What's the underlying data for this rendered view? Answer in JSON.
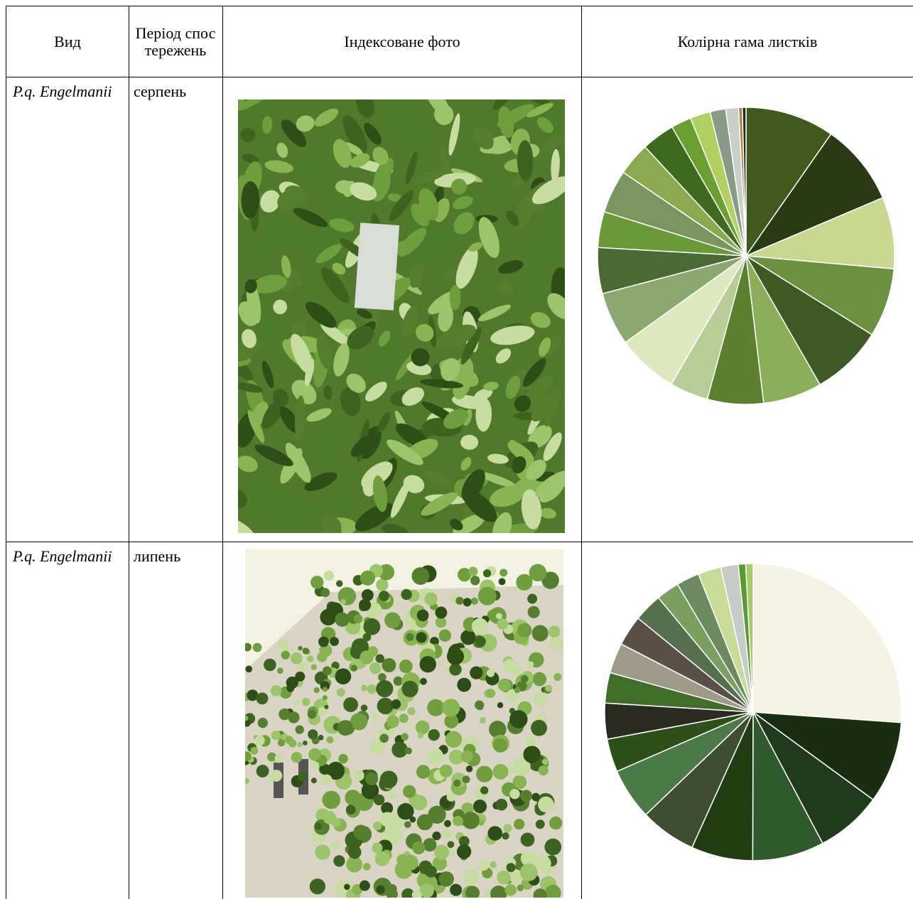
{
  "header": {
    "species": "Вид",
    "period": "Період спостережень",
    "photo": "Індексоване фото",
    "palette": "Колірна гама листків"
  },
  "rows": [
    {
      "species": "P.q. Engelmanii",
      "period": "серпень",
      "pie": {
        "type": "pie",
        "values": [
          9.7,
          8.9,
          7.8,
          7.5,
          7.8,
          6.4,
          6.1,
          4.2,
          6.7,
          5.8,
          5.0,
          3.9,
          4.7,
          3.6,
          3.6,
          2.2,
          2.2,
          1.7,
          1.4,
          0.4,
          0.4
        ],
        "colors": [
          "#3f5a1c",
          "#2a3a14",
          "#c8d890",
          "#6a9040",
          "#3d5a24",
          "#8aae5a",
          "#5a8030",
          "#b8cc98",
          "#dde8c0",
          "#8aa870",
          "#4a6a35",
          "#6a9a38",
          "#7a9660",
          "#8aaa50",
          "#3e6a20",
          "#6aa030",
          "#b0d060",
          "#8a9a88",
          "#c8d0c8",
          "#b08040",
          "#2a2a14"
        ]
      }
    },
    {
      "species": "P.q. Engelmanii",
      "period": "липень",
      "pie": {
        "type": "pie",
        "values": [
          26.1,
          8.9,
          7.2,
          7.8,
          6.7,
          6.1,
          5.6,
          3.6,
          3.9,
          3.3,
          3.3,
          3.3,
          3.1,
          2.5,
          2.5,
          2.5,
          1.9,
          0.8,
          0.8
        ],
        "colors": [
          "#f5f3e3",
          "#1a2e10",
          "#203a1c",
          "#2e5a2c",
          "#1f3d10",
          "#3f4e30",
          "#4a7a48",
          "#2c5018",
          "#2a2a20",
          "#3e6e28",
          "#a09a88",
          "#5a5048",
          "#54704c",
          "#7aa060",
          "#6a8a60",
          "#c8dc98",
          "#c8ccc8",
          "#5a9a30",
          "#a8cc68"
        ]
      }
    }
  ]
}
